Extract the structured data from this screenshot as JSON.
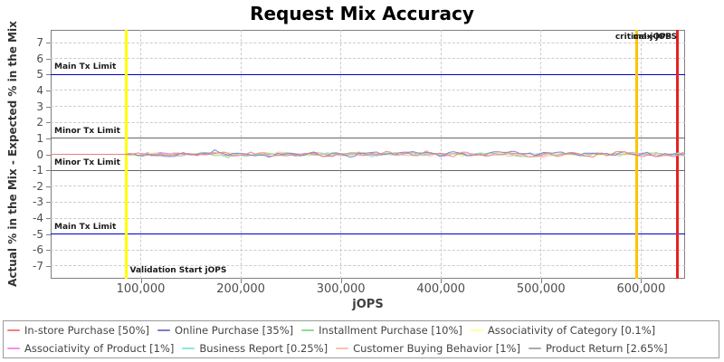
{
  "chart_data": {
    "type": "line",
    "title": "Request Mix Accuracy",
    "xlabel": "jOPS",
    "ylabel": "Actual % in the Mix - Expected % in the Mix",
    "xlim": [
      10000,
      644000
    ],
    "ylim": [
      -7.8,
      7.8
    ],
    "x_ticks": [
      100000,
      200000,
      300000,
      400000,
      500000,
      600000
    ],
    "x_tick_labels": [
      "100,000",
      "200,000",
      "300,000",
      "400,000",
      "500,000",
      "600,000"
    ],
    "y_ticks": [
      7,
      6,
      5,
      4,
      3,
      2,
      1,
      0,
      -1,
      -2,
      -3,
      -4,
      -5,
      -6,
      -7
    ],
    "grid": "dashed light-gray gridlines on both axes",
    "legend_position": "bottom",
    "series": [
      {
        "name": "In-store Purchase [50%]",
        "color": "#f08080",
        "noise_amplitude": 0.1
      },
      {
        "name": "Online Purchase [35%]",
        "color": "#7b7bcc",
        "noise_amplitude": 0.11
      },
      {
        "name": "Installment Purchase [10%]",
        "color": "#8fdc8f",
        "noise_amplitude": 0.08
      },
      {
        "name": "Associativity of Category [0.1%]",
        "color": "#ffffa0",
        "noise_amplitude": 0.05
      },
      {
        "name": "Associativity of Product [1%]",
        "color": "#f78bf7",
        "noise_amplitude": 0.06
      },
      {
        "name": "Business Report [0.25%]",
        "color": "#8ae8dc",
        "noise_amplitude": 0.06
      },
      {
        "name": "Customer Buying Behavior [1%]",
        "color": "#ffbfad",
        "noise_amplitude": 0.07
      },
      {
        "name": "Product Return [2.65%]",
        "color": "#ababab",
        "noise_amplitude": 0.07
      }
    ],
    "series_values_summary": "All series are flat at 0 before Validation Start jOPS, then oscillate around 0 within about ±0.3 through the end of the run",
    "noise_start": 85500,
    "limit_lines": [
      {
        "label": "Main Tx Limit",
        "value": 5,
        "color": "#0000cc"
      },
      {
        "label": "Minor Tx Limit",
        "value": 1,
        "color": "#666666"
      },
      {
        "label": "Minor Tx Limit",
        "value": -1,
        "color": "#666666"
      },
      {
        "label": "Main Tx Limit",
        "value": -5,
        "color": "#0000cc"
      }
    ],
    "markers": [
      {
        "label": "Validation Start jOPS",
        "value": 85500,
        "color": "#ffff00"
      },
      {
        "label": "critical-jOPS",
        "value": 596000,
        "color": "#ffc400"
      },
      {
        "label": "max-jOPS",
        "value": 636000,
        "color": "#e82222"
      }
    ]
  }
}
